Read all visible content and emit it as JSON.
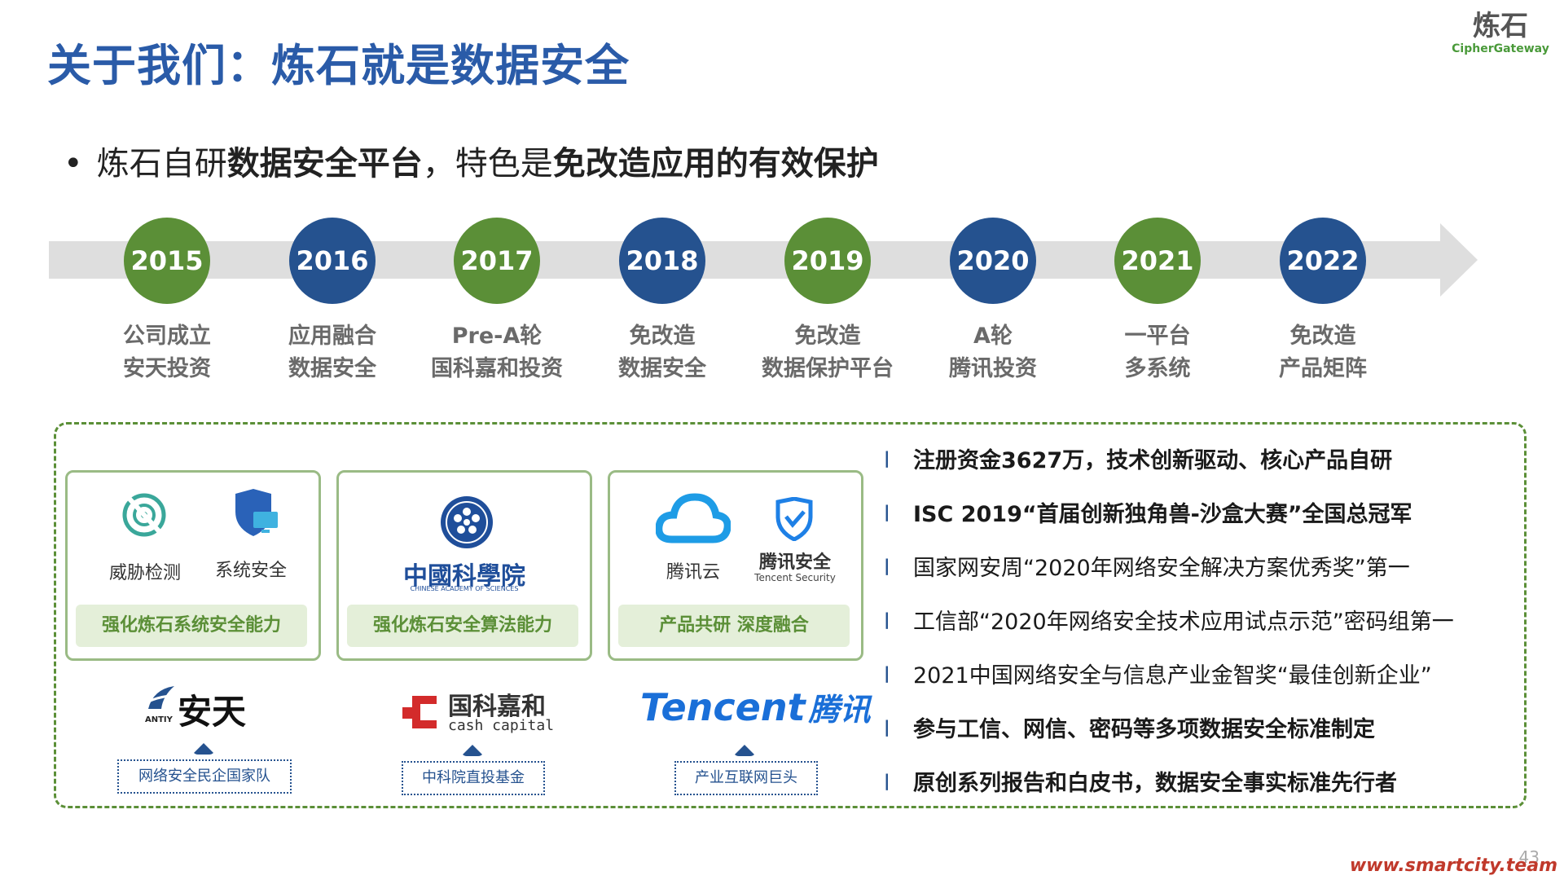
{
  "title": "关于我们：炼石就是数据安全",
  "logo": {
    "cn": "炼石",
    "en": "CipherGateway"
  },
  "bullet": {
    "part1": "炼石自研",
    "part2": "数据安全平台",
    "part3": "，特色是",
    "part4": "免改造应用的有效保护"
  },
  "timeline": [
    {
      "year": "2015",
      "line1": "公司成立",
      "line2": "安天投资",
      "color": "green"
    },
    {
      "year": "2016",
      "line1": "应用融合",
      "line2": "数据安全",
      "color": "blue"
    },
    {
      "year": "2017",
      "line1": "Pre-A轮",
      "line2": "国科嘉和投资",
      "color": "green"
    },
    {
      "year": "2018",
      "line1": "免改造",
      "line2": "数据安全",
      "color": "blue"
    },
    {
      "year": "2019",
      "line1": "免改造",
      "line2": "数据保护平台",
      "color": "green"
    },
    {
      "year": "2020",
      "line1": "A轮",
      "line2": "腾讯投资",
      "color": "blue"
    },
    {
      "year": "2021",
      "line1": "一平台",
      "line2": "多系统",
      "color": "green"
    },
    {
      "year": "2022",
      "line1": "免改造",
      "line2": "产品矩阵",
      "color": "blue"
    }
  ],
  "cards": [
    {
      "icon1": "威胁检测",
      "icon2": "系统安全",
      "tag": "强化炼石系统安全能力"
    },
    {
      "logo_text": "中國科學院",
      "logo_sub": "CHINESE ACADEMY OF SCIENCES",
      "tag": "强化炼石安全算法能力"
    },
    {
      "icon1": "腾讯云",
      "icon2": "腾讯安全",
      "icon2_sub": "Tencent Security",
      "tag": "产品共研 深度融合"
    }
  ],
  "partners": [
    {
      "logo": "安天",
      "logo_sub": "ANTIY",
      "label": "网络安全民企国家队"
    },
    {
      "logo": "国科嘉和",
      "logo_sub": "cash capital",
      "label": "中科院直投基金"
    },
    {
      "logo_en": "Tencent",
      "logo_cn": "腾讯",
      "label": "产业互联网巨头"
    }
  ],
  "highlights": [
    {
      "text": "注册资金3627万，技术创新驱动、核心产品自研",
      "bold": true
    },
    {
      "text": "ISC 2019“首届创新独角兽-沙盒大赛”全国总冠军",
      "bold": true
    },
    {
      "text": "国家网安周“2020年网络安全解决方案优秀奖”第一",
      "bold": false
    },
    {
      "text": "工信部“2020年网络安全技术应用试点示范”密码组第一",
      "bold": false
    },
    {
      "text": "2021中国网络安全与信息产业金智奖“最佳创新企业”",
      "bold": false
    },
    {
      "text": "参与工信、网信、密码等多项数据安全标准制定",
      "bold": true
    },
    {
      "text": "原创系列报告和白皮书，数据安全事实标准先行者",
      "bold": true
    }
  ],
  "highlight_marker": "l",
  "page_number": "43",
  "footer_url": "www.smartcity.team",
  "colors": {
    "green": "#5b8f37",
    "blue": "#25528f",
    "title": "#2a5ba8"
  }
}
